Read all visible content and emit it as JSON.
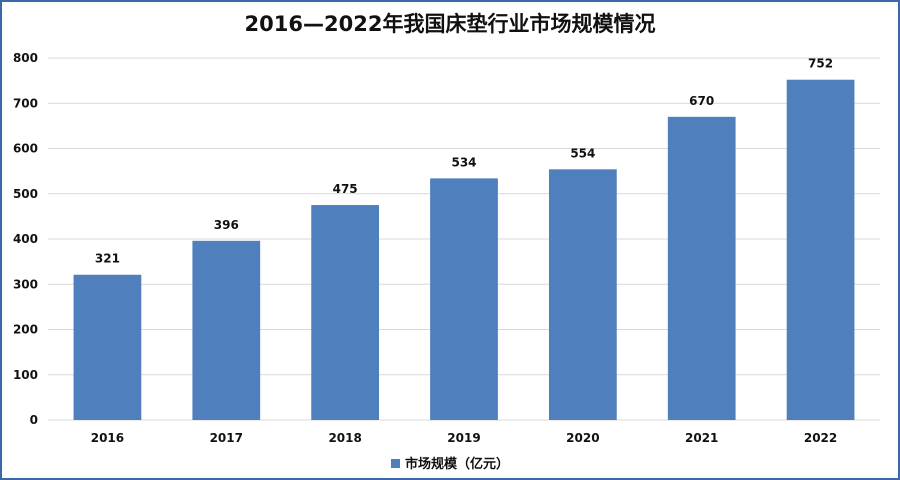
{
  "chart_data": {
    "type": "bar",
    "title": "2016—2022年我国床垫行业市场规模情况",
    "categories": [
      "2016",
      "2017",
      "2018",
      "2019",
      "2020",
      "2021",
      "2022"
    ],
    "series": [
      {
        "name": "市场规模（亿元）",
        "values": [
          321,
          396,
          475,
          534,
          554,
          670,
          752
        ]
      }
    ],
    "ylim": [
      0,
      800
    ],
    "yticks": [
      "0",
      "100",
      "200",
      "300",
      "400",
      "500",
      "600",
      "700",
      "800"
    ],
    "grid": true,
    "legend_position": "bottom",
    "colors": {
      "bar": "#4f7fbd",
      "grid": "#d9d9d9",
      "frame": "#3a68a8"
    }
  }
}
